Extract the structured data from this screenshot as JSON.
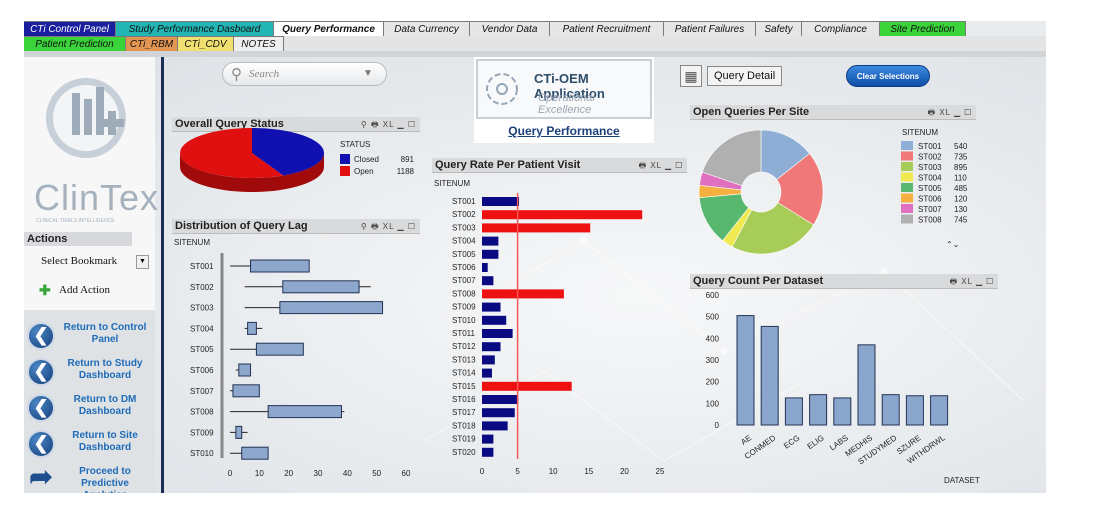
{
  "tabs_row1": [
    {
      "label": "CTi Control Panel",
      "bg": "#1a1fa0",
      "fg": "#ffffff",
      "w": 92
    },
    {
      "label": "Study Performance Dasboard",
      "bg": "#22b5b3",
      "fg": "#111111",
      "w": 158
    },
    {
      "label": "Query Performance",
      "bg": "#ffffff",
      "fg": "#111111",
      "w": 110,
      "bold": true
    },
    {
      "label": "Data Currency",
      "bg": "#e6e6e6",
      "fg": "#111111",
      "w": 86
    },
    {
      "label": "Vendor Data",
      "bg": "#e6e6e6",
      "fg": "#111111",
      "w": 80
    },
    {
      "label": "Patient Recruitment",
      "bg": "#e6e6e6",
      "fg": "#111111",
      "w": 114
    },
    {
      "label": "Patient Failures",
      "bg": "#e6e6e6",
      "fg": "#111111",
      "w": 92
    },
    {
      "label": "Safety",
      "bg": "#e6e6e6",
      "fg": "#111111",
      "w": 46
    },
    {
      "label": "Compliance",
      "bg": "#e6e6e6",
      "fg": "#111111",
      "w": 78
    },
    {
      "label": "Site Prediction",
      "bg": "#3ad33a",
      "fg": "#111111",
      "w": 86
    }
  ],
  "tabs_row2": [
    {
      "label": "Patient Prediction",
      "bg": "#3ad33a",
      "fg": "#111111",
      "w": 102
    },
    {
      "label": "CTi_RBM",
      "bg": "#e39552",
      "fg": "#111111",
      "w": 52
    },
    {
      "label": "CTi_CDV",
      "bg": "#f0e070",
      "fg": "#111111",
      "w": 56
    },
    {
      "label": "NOTES",
      "bg": "#eeeeee",
      "fg": "#111111",
      "w": 50
    }
  ],
  "sidebar": {
    "logo_text": "ClinTex",
    "logo_sub": "CLINICAL TRIALS INTELLIGENCE",
    "actions_label": "Actions",
    "bookmark_label": "Select Bookmark",
    "add_action_label": "Add Action",
    "buttons": [
      {
        "label": "Return to Control Panel",
        "icon": "left-arrow-icon"
      },
      {
        "label": "Return to Study Dashboard",
        "icon": "left-arrow-icon"
      },
      {
        "label": "Return to DM Dashboard",
        "icon": "left-arrow-icon"
      },
      {
        "label": "Return to Site Dashboard",
        "icon": "left-arrow-icon"
      },
      {
        "label": "Proceed to Predictive Analytics",
        "icon": "curved-right-arrow-icon"
      }
    ]
  },
  "search": {
    "placeholder": "Search"
  },
  "header_logo": {
    "title": "CTi-OEM Application",
    "subtitle": "Operational Excellence",
    "link": "Query Performance"
  },
  "query_detail_label": "Query Detail",
  "clear_selections_label": "Clear Selections",
  "panels": {
    "overall": {
      "title": "Overall Query Status",
      "icons": "⚲ 🖶 XL ▁ ☐"
    },
    "lag": {
      "title": "Distribution of Query Lag",
      "icons": "⚲ 🖶 XL ▁ ☐"
    },
    "rate": {
      "title": "Query Rate Per Patient Visit",
      "icons": "🖶 XL ▁ ☐"
    },
    "sites": {
      "title": "Open Queries Per Site",
      "icons": "🖶 XL ▁ ☐"
    },
    "dataset": {
      "title": "Query Count Per Dataset",
      "icons": "🖶 XL ▁ ☐"
    }
  },
  "chart_data": [
    {
      "type": "pie",
      "title": "Overall Query Status",
      "legend_title": "STATUS",
      "categories": [
        "Closed",
        "Open"
      ],
      "values": [
        891,
        1188
      ],
      "colors": [
        "#1010b0",
        "#e01010"
      ]
    },
    {
      "type": "boxplot",
      "title": "Distribution of Query Lag",
      "ylabel": "SITENUM",
      "categories": [
        "ST001",
        "ST002",
        "ST003",
        "ST004",
        "ST005",
        "ST006",
        "ST007",
        "ST008",
        "ST009",
        "ST010"
      ],
      "boxes": [
        {
          "min": 0,
          "q1": 7,
          "q3": 27,
          "max": 27
        },
        {
          "min": 5,
          "q1": 18,
          "q3": 44,
          "max": 48
        },
        {
          "min": 5,
          "q1": 17,
          "q3": 52,
          "max": 52
        },
        {
          "min": 5,
          "q1": 6,
          "q3": 9,
          "max": 11
        },
        {
          "min": 0,
          "q1": 9,
          "q3": 25,
          "max": 25
        },
        {
          "min": 2,
          "q1": 3,
          "q3": 7,
          "max": 7
        },
        {
          "min": 0,
          "q1": 1,
          "q3": 10,
          "max": 10
        },
        {
          "min": 0,
          "q1": 13,
          "q3": 38,
          "max": 39
        },
        {
          "min": 0,
          "q1": 2,
          "q3": 4,
          "max": 6
        },
        {
          "min": 0,
          "q1": 4,
          "q3": 13,
          "max": 13
        }
      ],
      "xticks": [
        0,
        10,
        20,
        30,
        40,
        50,
        60
      ],
      "xlim": [
        0,
        60
      ]
    },
    {
      "type": "bar",
      "title": "Query Rate Per Patient Visit",
      "ylabel": "SITENUM",
      "categories": [
        "ST001",
        "ST002",
        "ST003",
        "ST004",
        "ST005",
        "ST006",
        "ST007",
        "ST008",
        "ST009",
        "ST010",
        "ST011",
        "ST012",
        "ST013",
        "ST014",
        "ST015",
        "ST016",
        "ST017",
        "ST018",
        "ST019",
        "ST020"
      ],
      "values": [
        5.2,
        22.5,
        15.2,
        2.3,
        2.3,
        0.8,
        1.6,
        11.5,
        2.6,
        3.4,
        4.3,
        2.6,
        1.8,
        1.4,
        12.6,
        5.1,
        4.6,
        3.6,
        1.6,
        1.6
      ],
      "highlight": [
        "ST002",
        "ST003",
        "ST008",
        "ST015"
      ],
      "reference_line": 5,
      "xticks": [
        0,
        5,
        10,
        15,
        20,
        25
      ],
      "xlim": [
        0,
        25
      ],
      "colors": {
        "normal": "#0a0a82",
        "highlight": "#ee1111",
        "ref": "#ff5555"
      }
    },
    {
      "type": "pie",
      "title": "Open Queries Per Site",
      "legend_title": "SITENUM",
      "categories": [
        "ST001",
        "ST002",
        "ST003",
        "ST004",
        "ST005",
        "ST006",
        "ST007",
        "ST008"
      ],
      "values": [
        540,
        735,
        895,
        110,
        485,
        120,
        130,
        745
      ],
      "colors": [
        "#8eaed6",
        "#f07878",
        "#a8cc58",
        "#f0ea50",
        "#58b870",
        "#f5b040",
        "#e070c0",
        "#b0b0b0"
      ],
      "donut": true
    },
    {
      "type": "bar",
      "title": "Query Count Per Dataset",
      "xlabel": "DATASET",
      "categories": [
        "AE",
        "CONMED",
        "ECG",
        "ELIG",
        "LABS",
        "MEDHIS",
        "STUDYMED",
        "SZURE",
        "WITHDRWL"
      ],
      "values": [
        505,
        455,
        125,
        140,
        125,
        370,
        140,
        135,
        135
      ],
      "yticks": [
        0,
        100,
        200,
        300,
        400,
        500,
        600
      ],
      "ylim": [
        0,
        600
      ],
      "colors": {
        "bar": "#8aa6cc",
        "edge": "#223355"
      }
    }
  ]
}
